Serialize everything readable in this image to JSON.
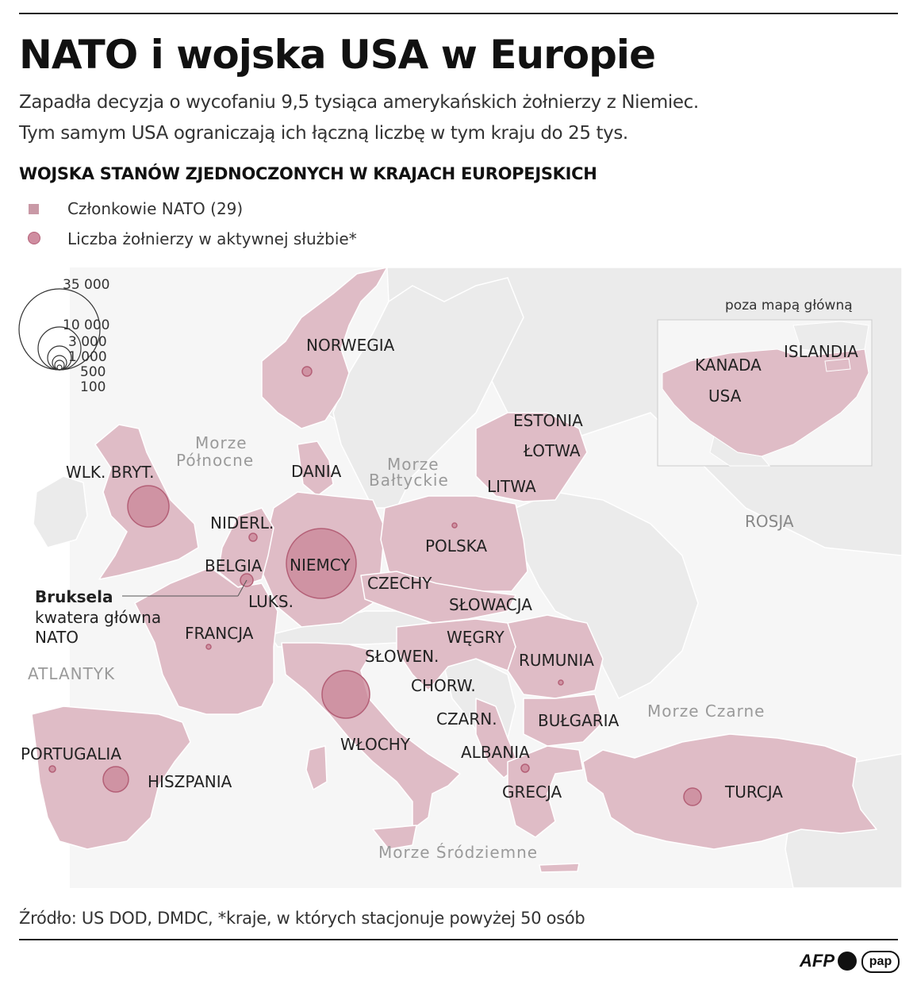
{
  "header": {
    "title": "NATO i wojska USA w Europie",
    "subtitle_line1": "Zapadła decyzja o wycofaniu 9,5 tysiąca amerykańskich żołnierzy z Niemiec.",
    "subtitle_line2": "Tym samym USA ograniczają ich łączną liczbę w tym kraju do 25 tys.",
    "section_title": "WOJSKA STANÓW ZJEDNOCZONYCH W KRAJACH EUROPEJSKICH"
  },
  "legend": {
    "members": "Członkowie NATO (29)",
    "troops": "Liczba żołnierzy w aktywnej służbie*"
  },
  "size_scale": {
    "labels": [
      "35 000",
      "10 000",
      "3 000",
      "1 000",
      "500",
      "100"
    ]
  },
  "colors": {
    "nato_fill": "#dfbcc6",
    "land_fill": "#ececec",
    "sea_fill": "#f7f7f7",
    "bubble_fill": "#c98697",
    "bubble_stroke": "#b46077"
  },
  "map": {
    "countries": {
      "norway": "NORWEGIA",
      "uk": "WLK. BRYT.",
      "denmark": "DANIA",
      "estonia": "ESTONIA",
      "latvia": "ŁOTWA",
      "lithuania": "LITWA",
      "netherlands": "NIDERL.",
      "poland": "POLSKA",
      "belgium": "BELGIA",
      "germany": "NIEMCY",
      "czechia": "CZECHY",
      "luxembourg": "LUKS.",
      "slovakia": "SŁOWACJA",
      "france": "FRANCJA",
      "hungary": "WĘGRY",
      "slovenia": "SŁOWEN.",
      "romania": "RUMUNIA",
      "croatia": "CHORW.",
      "montenegro": "CZARN.",
      "bulgaria": "BUŁGARIA",
      "albania": "ALBANIA",
      "italy": "WŁOCHY",
      "portugal": "PORTUGALIA",
      "spain": "HISZPANIA",
      "greece": "GRECJA",
      "turkey": "TURCJA",
      "russia": "ROSJA"
    },
    "seas": {
      "north_sea_1": "Morze",
      "north_sea_2": "Północne",
      "baltic_1": "Morze",
      "baltic_2": "Bałtyckie",
      "atlantic": "ATLANTYK",
      "black_sea": "Morze Czarne",
      "mediterranean": "Morze Śródziemne"
    },
    "brussels": {
      "name": "Bruksela",
      "line1": "kwatera główna",
      "line2": "NATO"
    },
    "inset": {
      "title": "poza mapą główną",
      "canada": "KANADA",
      "iceland": "ISLANDIA",
      "usa": "USA"
    }
  },
  "footer": {
    "source": "Źródło: US DOD, DMDC, *kraje, w których stacjonuje powyżej 50 osób",
    "logo_afp": "AFP",
    "logo_pap": "pap"
  }
}
